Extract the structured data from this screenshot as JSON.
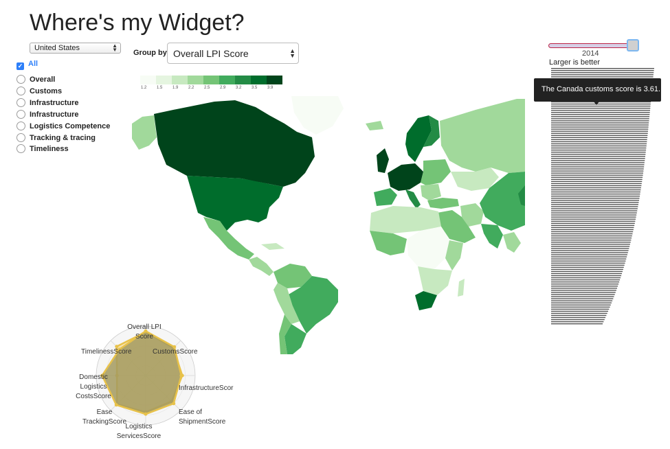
{
  "page": {
    "title": "Where's my Widget?"
  },
  "filters": {
    "country_select": {
      "value": "United States"
    },
    "all_label": "All",
    "options": [
      "Overall",
      "Customs",
      "Infrastructure",
      "Infrastructure",
      "Logistics Competence",
      "Tracking & tracing",
      "Timeliness"
    ]
  },
  "groupby": {
    "label": "Group by",
    "value": "Overall LPI Score"
  },
  "legend": {
    "ticks": [
      "1.2",
      "1.5",
      "1.9",
      "2.2",
      "2.5",
      "2.9",
      "3.2",
      "3.5",
      "3.9"
    ],
    "colors": [
      "#f7fcf5",
      "#e5f5e0",
      "#c7e9c0",
      "#a1d99b",
      "#74c476",
      "#41ab5d",
      "#238b45",
      "#006d2c",
      "#00441b"
    ]
  },
  "slider": {
    "year": "2014",
    "value": 1.0
  },
  "ranking": {
    "label": "Larger is better"
  },
  "tooltip": {
    "text": "The Canada customs score is 3.61."
  },
  "radar": {
    "labels": {
      "overall": [
        "Overall LPI",
        "Score"
      ],
      "customs": [
        "CustomsScore"
      ],
      "infrastructure": [
        "InfrastructureScore"
      ],
      "shipment": [
        "Ease of",
        "ShipmentScore"
      ],
      "services": [
        "Logistics",
        "ServicesScore"
      ],
      "tracking": [
        "Ease",
        "TrackingScore"
      ],
      "domestic": [
        "Domestic",
        "Logistics",
        "CostsScore"
      ],
      "timeliness": [
        "TimelinessScore"
      ]
    },
    "series": [
      {
        "values": [
          0.88,
          0.79,
          0.74,
          0.74,
          0.74,
          0.82,
          0.58,
          0.83
        ]
      },
      {
        "values": [
          0.9,
          0.82,
          0.72,
          0.8,
          0.78,
          0.84,
          0.88,
          0.75
        ]
      }
    ]
  },
  "colors": {
    "accent": "#2d7ff9",
    "radar_fill": "#a39a5f",
    "radar_stroke": "#e8c24a",
    "tooltip_bg": "#222222"
  }
}
